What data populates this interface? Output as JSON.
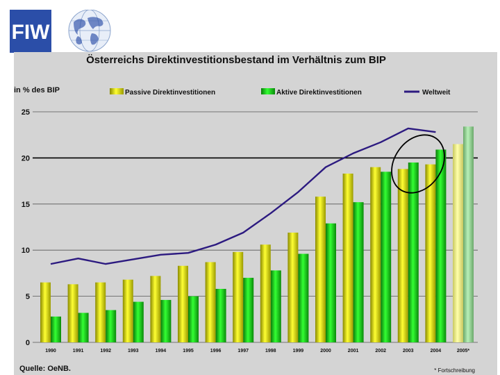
{
  "logo": {
    "text": "FIW",
    "color": "#2b4ea8"
  },
  "chart_data": {
    "type": "bar",
    "title": "Österreichs Direktinvestitionsbestand im Verhältnis zum BIP",
    "ylabel": "in % des BIP",
    "xlabel": "",
    "ylim": [
      0,
      25
    ],
    "yticks": [
      0,
      5,
      10,
      15,
      20,
      25
    ],
    "grid": true,
    "legend_position": "top",
    "categories": [
      "1990",
      "1991",
      "1992",
      "1993",
      "1994",
      "1995",
      "1996",
      "1997",
      "1998",
      "1999",
      "2000",
      "2001",
      "2002",
      "2003",
      "2004",
      "2005*"
    ],
    "series": [
      {
        "name": "Passive Direktinvestitionen",
        "kind": "bar",
        "color": "#e6e600",
        "values": [
          6.5,
          6.3,
          6.5,
          6.8,
          7.2,
          8.3,
          8.7,
          9.8,
          10.6,
          11.9,
          15.8,
          18.3,
          19.0,
          18.8,
          19.3,
          21.5
        ]
      },
      {
        "name": "Aktive Direktinvestitionen",
        "kind": "bar",
        "color": "#1fcc1f",
        "values": [
          2.8,
          3.2,
          3.5,
          4.4,
          4.6,
          5.0,
          5.8,
          7.0,
          7.8,
          9.6,
          12.9,
          15.2,
          18.5,
          19.5,
          20.9,
          23.4
        ]
      },
      {
        "name": "Weltweit",
        "kind": "line",
        "color": "#2c1a80",
        "values": [
          8.5,
          9.1,
          8.5,
          9.0,
          9.5,
          9.7,
          10.6,
          11.9,
          14.0,
          16.3,
          19.0,
          20.5,
          21.7,
          23.2,
          22.8,
          null
        ]
      }
    ],
    "annotations": {
      "source": "Quelle: OeNB.",
      "footnote": "* Fortschreibung"
    }
  }
}
